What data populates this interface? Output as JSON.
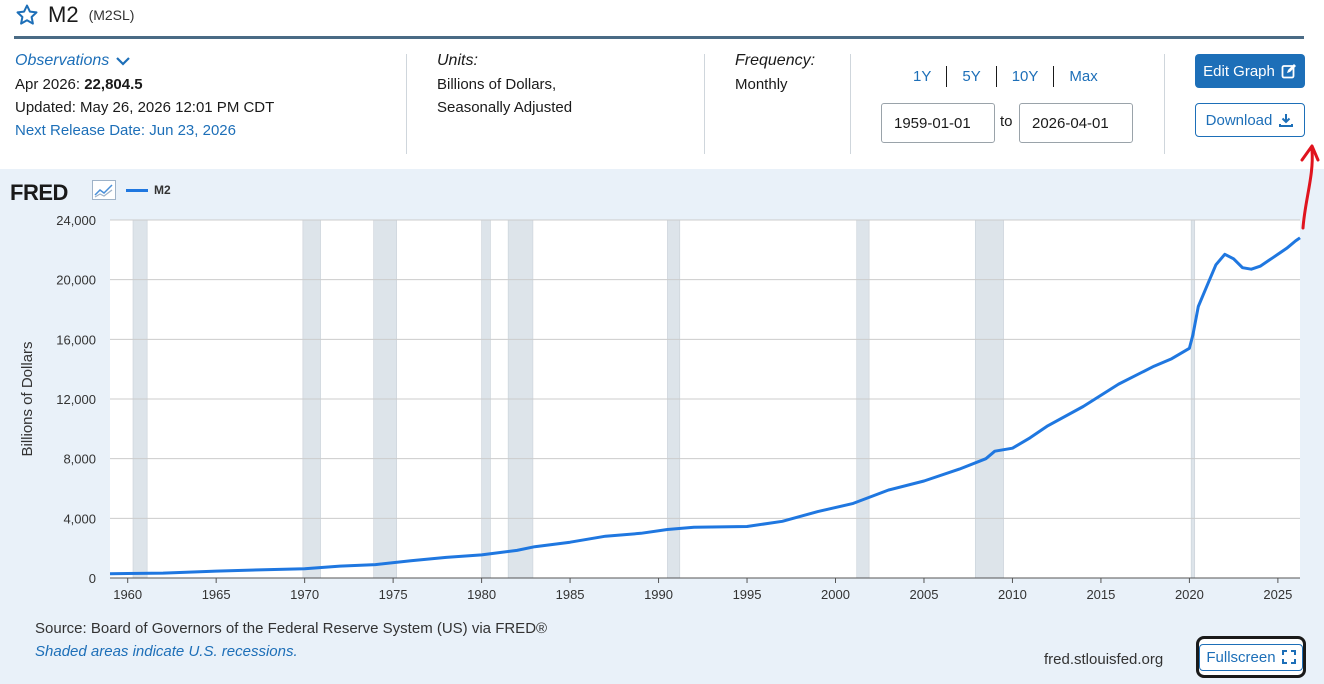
{
  "header": {
    "title": "M2",
    "series_id": "(M2SL)"
  },
  "observations": {
    "link_label": "Observations",
    "latest_period": "Apr 2026:",
    "latest_value": "22,804.5",
    "updated": "Updated: May 26, 2026 12:01 PM CDT",
    "next_release": "Next Release Date: Jun 23, 2026"
  },
  "units": {
    "label": "Units:",
    "line1": "Billions of Dollars,",
    "line2": "Seasonally Adjusted"
  },
  "frequency": {
    "label": "Frequency:",
    "value": "Monthly"
  },
  "range": {
    "buttons": [
      "1Y",
      "5Y",
      "10Y",
      "Max"
    ],
    "start": "1959-01-01",
    "to_label": "to",
    "end": "2026-04-01"
  },
  "actions": {
    "edit_label": "Edit Graph",
    "download_label": "Download"
  },
  "graph": {
    "logo": "FRED",
    "legend_label": "M2",
    "line_color": "#1f77e0",
    "recession_color": "#dde4ea",
    "source": "Source: Board of Governors of the Federal Reserve System (US) via FRED®",
    "recession_note": "Shaded areas indicate U.S. recessions.",
    "site": "fred.stlouisfed.org",
    "fullscreen_label": "Fullscreen"
  },
  "chart_data": {
    "type": "line",
    "title": "",
    "xlabel": "",
    "ylabel": "Billions of Dollars",
    "xlim": [
      1959.0,
      2026.25
    ],
    "ylim": [
      0,
      24000
    ],
    "yticks": [
      0,
      4000,
      8000,
      12000,
      16000,
      20000,
      24000
    ],
    "ytick_labels": [
      "0",
      "4,000",
      "8,000",
      "12,000",
      "16,000",
      "20,000",
      "24,000"
    ],
    "xticks": [
      1960,
      1965,
      1970,
      1975,
      1980,
      1985,
      1990,
      1995,
      2000,
      2005,
      2010,
      2015,
      2020,
      2025
    ],
    "recessions": [
      [
        1960.3,
        1961.1
      ],
      [
        1969.9,
        1970.9
      ],
      [
        1973.9,
        1975.2
      ],
      [
        1980.0,
        1980.5
      ],
      [
        1981.5,
        1982.9
      ],
      [
        1990.5,
        1991.2
      ],
      [
        2001.2,
        2001.9
      ],
      [
        2007.9,
        2009.5
      ],
      [
        2020.1,
        2020.3
      ]
    ],
    "grid": true,
    "series": [
      {
        "name": "M2",
        "x": [
          1959.0,
          1962.0,
          1965.0,
          1968.0,
          1970.0,
          1972.0,
          1974.0,
          1976.0,
          1978.0,
          1980.0,
          1982.0,
          1983.0,
          1985.0,
          1987.0,
          1989.0,
          1990.5,
          1992.0,
          1995.0,
          1997.0,
          1999.0,
          2001.0,
          2003.0,
          2005.0,
          2007.0,
          2008.5,
          2009.0,
          2010.0,
          2011.0,
          2012.0,
          2014.0,
          2016.0,
          2018.0,
          2019.0,
          2020.0,
          2020.2,
          2020.5,
          2021.0,
          2021.5,
          2022.0,
          2022.5,
          2023.0,
          2023.5,
          2024.0,
          2024.5,
          2025.0,
          2025.5,
          2026.0,
          2026.25
        ],
        "values": [
          290,
          330,
          460,
          560,
          620,
          800,
          900,
          1150,
          1380,
          1550,
          1850,
          2100,
          2400,
          2800,
          3000,
          3250,
          3400,
          3450,
          3800,
          4450,
          5000,
          5900,
          6500,
          7300,
          8000,
          8500,
          8700,
          9400,
          10200,
          11500,
          13000,
          14200,
          14700,
          15400,
          16300,
          18200,
          19600,
          21000,
          21700,
          21400,
          20800,
          20700,
          20900,
          21300,
          21700,
          22100,
          22600,
          22804.5
        ]
      }
    ]
  }
}
